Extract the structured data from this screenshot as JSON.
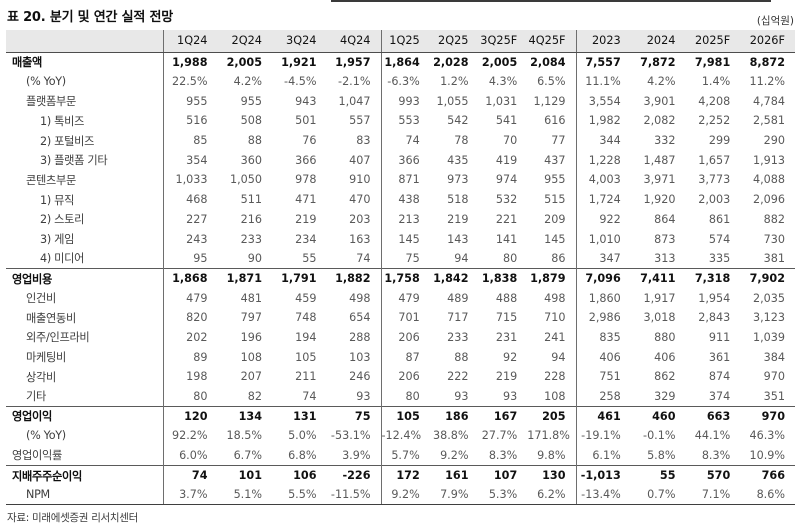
{
  "title": "표 20. 분기 및 연간 실적 전망",
  "unit_label": "(십억원)",
  "source": "자료: 미래에셋증권 리서치센터",
  "table": {
    "columns": [
      "1Q24",
      "2Q24",
      "3Q24",
      "4Q24",
      "1Q25",
      "2Q25",
      "3Q25F",
      "4Q25F",
      "2023",
      "2024",
      "2025F",
      "2026F"
    ],
    "group_start_indexes": [
      4,
      8
    ],
    "rows": [
      {
        "label": "매출액",
        "indent": 0,
        "bold": true,
        "section": false,
        "values": [
          "1,988",
          "2,005",
          "1,921",
          "1,957",
          "1,864",
          "2,028",
          "2,005",
          "2,084",
          "7,557",
          "7,872",
          "7,981",
          "8,872"
        ]
      },
      {
        "label": "(% YoY)",
        "indent": 1,
        "bold": false,
        "section": false,
        "values": [
          "22.5%",
          "4.2%",
          "-4.5%",
          "-2.1%",
          "-6.3%",
          "1.2%",
          "4.3%",
          "6.5%",
          "11.1%",
          "4.2%",
          "1.4%",
          "11.2%"
        ]
      },
      {
        "label": "플랫폼부문",
        "indent": 1,
        "bold": false,
        "section": false,
        "values": [
          "955",
          "955",
          "943",
          "1,047",
          "993",
          "1,055",
          "1,031",
          "1,129",
          "3,554",
          "3,901",
          "4,208",
          "4,784"
        ]
      },
      {
        "label": "1) 톡비즈",
        "indent": 2,
        "bold": false,
        "section": false,
        "values": [
          "516",
          "508",
          "501",
          "557",
          "553",
          "542",
          "541",
          "616",
          "1,982",
          "2,082",
          "2,252",
          "2,581"
        ]
      },
      {
        "label": "2) 포털비즈",
        "indent": 2,
        "bold": false,
        "section": false,
        "values": [
          "85",
          "88",
          "76",
          "83",
          "74",
          "78",
          "70",
          "77",
          "344",
          "332",
          "299",
          "290"
        ]
      },
      {
        "label": "3) 플랫폼 기타",
        "indent": 2,
        "bold": false,
        "section": false,
        "values": [
          "354",
          "360",
          "366",
          "407",
          "366",
          "435",
          "419",
          "437",
          "1,228",
          "1,487",
          "1,657",
          "1,913"
        ]
      },
      {
        "label": "콘텐츠부문",
        "indent": 1,
        "bold": false,
        "section": false,
        "values": [
          "1,033",
          "1,050",
          "978",
          "910",
          "871",
          "973",
          "974",
          "955",
          "4,003",
          "3,971",
          "3,773",
          "4,088"
        ]
      },
      {
        "label": "1) 뮤직",
        "indent": 2,
        "bold": false,
        "section": false,
        "values": [
          "468",
          "511",
          "471",
          "470",
          "438",
          "518",
          "532",
          "515",
          "1,724",
          "1,920",
          "2,003",
          "2,096"
        ]
      },
      {
        "label": "2) 스토리",
        "indent": 2,
        "bold": false,
        "section": false,
        "values": [
          "227",
          "216",
          "219",
          "203",
          "213",
          "219",
          "221",
          "209",
          "922",
          "864",
          "861",
          "882"
        ]
      },
      {
        "label": "3) 게임",
        "indent": 2,
        "bold": false,
        "section": false,
        "values": [
          "243",
          "233",
          "234",
          "163",
          "145",
          "143",
          "141",
          "145",
          "1,010",
          "873",
          "574",
          "730"
        ]
      },
      {
        "label": "4) 미디어",
        "indent": 2,
        "bold": false,
        "section": false,
        "values": [
          "95",
          "90",
          "55",
          "74",
          "75",
          "94",
          "80",
          "86",
          "347",
          "313",
          "335",
          "381"
        ]
      },
      {
        "label": "영업비용",
        "indent": 0,
        "bold": true,
        "section": true,
        "values": [
          "1,868",
          "1,871",
          "1,791",
          "1,882",
          "1,758",
          "1,842",
          "1,838",
          "1,879",
          "7,096",
          "7,411",
          "7,318",
          "7,902"
        ]
      },
      {
        "label": "인건비",
        "indent": 1,
        "bold": false,
        "section": false,
        "values": [
          "479",
          "481",
          "459",
          "498",
          "479",
          "489",
          "488",
          "498",
          "1,860",
          "1,917",
          "1,954",
          "2,035"
        ]
      },
      {
        "label": "매출연동비",
        "indent": 1,
        "bold": false,
        "section": false,
        "values": [
          "820",
          "797",
          "748",
          "654",
          "701",
          "717",
          "715",
          "710",
          "2,986",
          "3,018",
          "2,843",
          "3,123"
        ]
      },
      {
        "label": "외주/인프라비",
        "indent": 1,
        "bold": false,
        "section": false,
        "values": [
          "202",
          "196",
          "194",
          "288",
          "206",
          "233",
          "231",
          "241",
          "835",
          "880",
          "911",
          "1,039"
        ]
      },
      {
        "label": "마케팅비",
        "indent": 1,
        "bold": false,
        "section": false,
        "values": [
          "89",
          "108",
          "105",
          "103",
          "87",
          "88",
          "92",
          "94",
          "406",
          "406",
          "361",
          "384"
        ]
      },
      {
        "label": "상각비",
        "indent": 1,
        "bold": false,
        "section": false,
        "values": [
          "198",
          "207",
          "211",
          "246",
          "206",
          "222",
          "219",
          "228",
          "751",
          "862",
          "874",
          "970"
        ]
      },
      {
        "label": "기타",
        "indent": 1,
        "bold": false,
        "section": false,
        "values": [
          "80",
          "82",
          "74",
          "93",
          "80",
          "93",
          "93",
          "108",
          "258",
          "329",
          "374",
          "351"
        ]
      },
      {
        "label": "영업이익",
        "indent": 0,
        "bold": true,
        "section": true,
        "values": [
          "120",
          "134",
          "131",
          "75",
          "105",
          "186",
          "167",
          "205",
          "461",
          "460",
          "663",
          "970"
        ]
      },
      {
        "label": "(% YoY)",
        "indent": 1,
        "bold": false,
        "section": false,
        "values": [
          "92.2%",
          "18.5%",
          "5.0%",
          "-53.1%",
          "-12.4%",
          "38.8%",
          "27.7%",
          "171.8%",
          "-19.1%",
          "-0.1%",
          "44.1%",
          "46.3%"
        ]
      },
      {
        "label": "영업이익률",
        "indent": 0,
        "bold": false,
        "section": false,
        "values": [
          "6.0%",
          "6.7%",
          "6.8%",
          "3.9%",
          "5.7%",
          "9.2%",
          "8.3%",
          "9.8%",
          "6.1%",
          "5.8%",
          "8.3%",
          "10.9%"
        ]
      },
      {
        "label": "지배주주순이익",
        "indent": 0,
        "bold": true,
        "section": true,
        "values": [
          "74",
          "101",
          "106",
          "-226",
          "172",
          "161",
          "107",
          "130",
          "-1,013",
          "55",
          "570",
          "766"
        ]
      },
      {
        "label": "NPM",
        "indent": 1,
        "bold": false,
        "section": false,
        "values": [
          "3.7%",
          "5.1%",
          "5.5%",
          "-11.5%",
          "9.2%",
          "7.9%",
          "5.3%",
          "6.2%",
          "-13.4%",
          "0.7%",
          "7.1%",
          "8.6%"
        ]
      }
    ]
  }
}
